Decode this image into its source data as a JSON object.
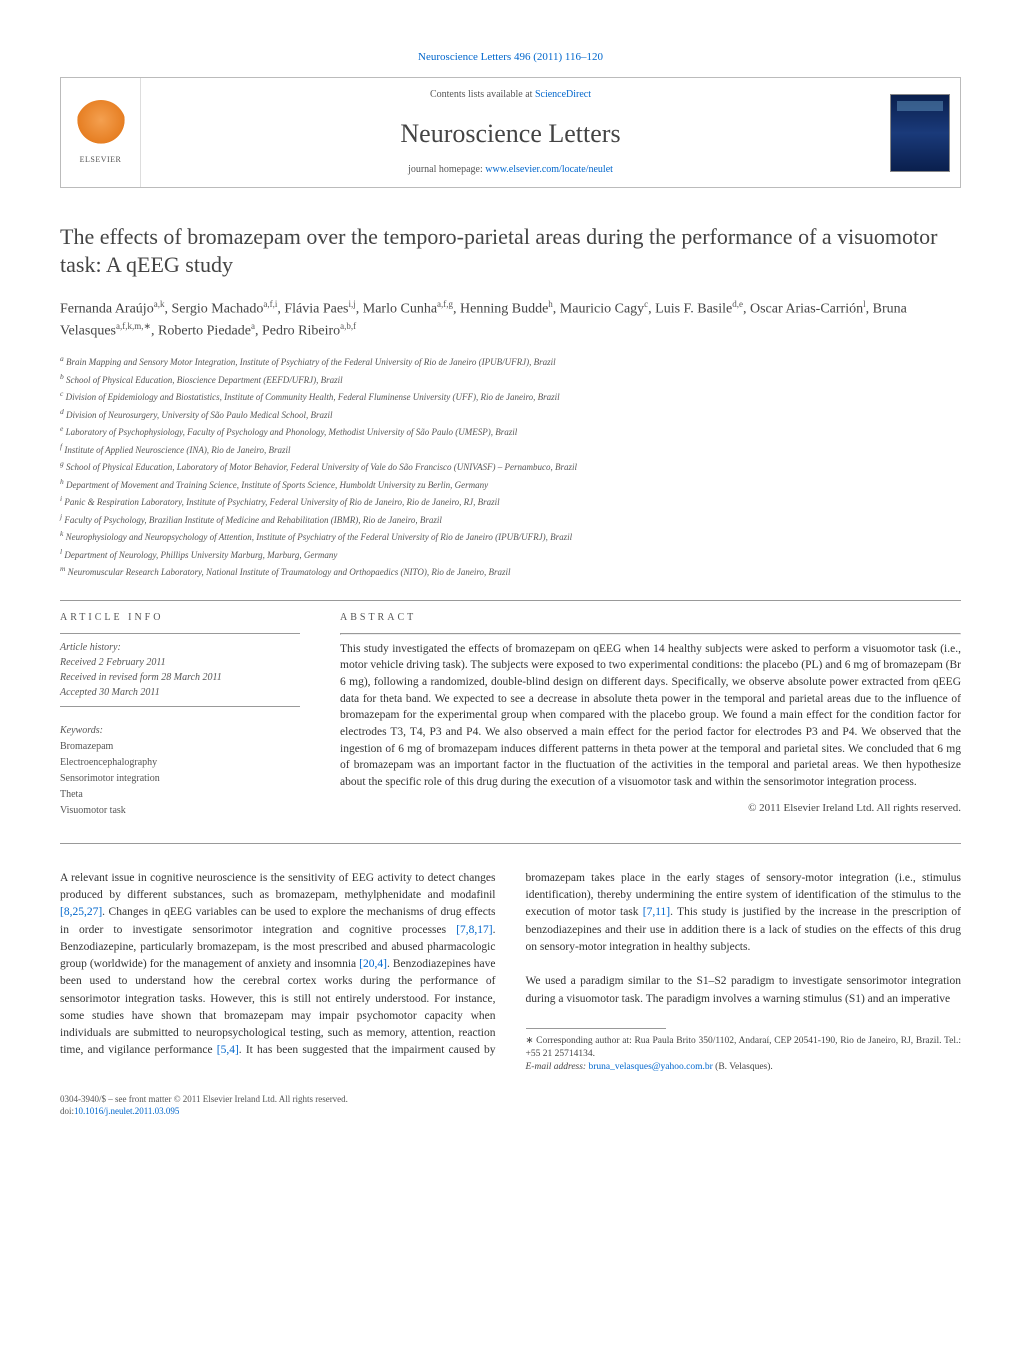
{
  "header": {
    "top_citation": "Neuroscience Letters 496 (2011) 116–120",
    "contents_prefix": "Contents lists available at ",
    "contents_link": "ScienceDirect",
    "journal_name": "Neuroscience Letters",
    "homepage_prefix": "journal homepage: ",
    "homepage_link": "www.elsevier.com/locate/neulet",
    "elsevier": "ELSEVIER"
  },
  "article": {
    "title": "The effects of bromazepam over the temporo-parietal areas during the performance of a visuomotor task: A qEEG study",
    "authors_html": "Fernanda Araújo<sup>a,k</sup>, Sergio Machado<sup>a,f,i</sup>, Flávia Paes<sup>i,j</sup>, Marlo Cunha<sup>a,f,g</sup>, Henning Budde<sup>h</sup>, Mauricio Cagy<sup>c</sup>, Luis F. Basile<sup>d,e</sup>, Oscar Arias-Carrión<sup>l</sup>, Bruna Velasques<sup>a,f,k,m,∗</sup>, Roberto Piedade<sup>a</sup>, Pedro Ribeiro<sup>a,b,f</sup>"
  },
  "affiliations": [
    "a Brain Mapping and Sensory Motor Integration, Institute of Psychiatry of the Federal University of Rio de Janeiro (IPUB/UFRJ), Brazil",
    "b School of Physical Education, Bioscience Department (EEFD/UFRJ), Brazil",
    "c Division of Epidemiology and Biostatistics, Institute of Community Health, Federal Fluminense University (UFF), Rio de Janeiro, Brazil",
    "d Division of Neurosurgery, University of São Paulo Medical School, Brazil",
    "e Laboratory of Psychophysiology, Faculty of Psychology and Phonology, Methodist University of São Paulo (UMESP), Brazil",
    "f Institute of Applied Neuroscience (INA), Rio de Janeiro, Brazil",
    "g School of Physical Education, Laboratory of Motor Behavior, Federal University of Vale do São Francisco (UNIVASF) – Pernambuco, Brazil",
    "h Department of Movement and Training Science, Institute of Sports Science, Humboldt University zu Berlin, Germany",
    "i Panic & Respiration Laboratory, Institute of Psychiatry, Federal University of Rio de Janeiro, Rio de Janeiro, RJ, Brazil",
    "j Faculty of Psychology, Brazilian Institute of Medicine and Rehabilitation (IBMR), Rio de Janeiro, Brazil",
    "k Neurophysiology and Neuropsychology of Attention, Institute of Psychiatry of the Federal University of Rio de Janeiro (IPUB/UFRJ), Brazil",
    "l Department of Neurology, Phillips University Marburg, Marburg, Germany",
    "m Neuromuscular Research Laboratory, National Institute of Traumatology and Orthopaedics (NITO), Rio de Janeiro, Brazil"
  ],
  "info": {
    "heading": "article info",
    "history_label": "Article history:",
    "received": "Received 2 February 2011",
    "revised": "Received in revised form 28 March 2011",
    "accepted": "Accepted 30 March 2011",
    "keywords_label": "Keywords:",
    "keywords": [
      "Bromazepam",
      "Electroencephalography",
      "Sensorimotor integration",
      "Theta",
      "Visuomotor task"
    ]
  },
  "abstract": {
    "heading": "abstract",
    "text": "This study investigated the effects of bromazepam on qEEG when 14 healthy subjects were asked to perform a visuomotor task (i.e., motor vehicle driving task). The subjects were exposed to two experimental conditions: the placebo (PL) and 6 mg of bromazepam (Br 6 mg), following a randomized, double-blind design on different days. Specifically, we observe absolute power extracted from qEEG data for theta band. We expected to see a decrease in absolute theta power in the temporal and parietal areas due to the influence of bromazepam for the experimental group when compared with the placebo group. We found a main effect for the condition factor for electrodes T3, T4, P3 and P4. We also observed a main effect for the period factor for electrodes P3 and P4. We observed that the ingestion of 6 mg of bromazepam induces different patterns in theta power at the temporal and parietal sites. We concluded that 6 mg of bromazepam was an important factor in the fluctuation of the activities in the temporal and parietal areas. We then hypothesize about the specific role of this drug during the execution of a visuomotor task and within the sensorimotor integration process.",
    "copyright": "© 2011 Elsevier Ireland Ltd. All rights reserved."
  },
  "body": {
    "para1_pre": "A relevant issue in cognitive neuroscience is the sensitivity of EEG activity to detect changes produced by different substances, such as bromazepam, methylphenidate and modafinil ",
    "ref1": "[8,25,27]",
    "para1_mid1": ". Changes in qEEG variables can be used to explore the mechanisms of drug effects in order to investigate sensorimotor integration and cognitive processes ",
    "ref2": "[7,8,17]",
    "para1_mid2": ". Benzodiazepine, particularly bromazepam, is the most prescribed and abused pharmacologic group (worldwide) for the management of anxiety and insomnia ",
    "ref3": "[20,4]",
    "para1_end": ". Benzodiazepines have been used to understand how the cerebral cortex works during the performance of sensorimotor integration ",
    "para2_pre": "tasks. However, this is still not entirely understood. For instance, some studies have shown that bromazepam may impair psychomotor capacity when individuals are submitted to neuropsychological testing, such as memory, attention, reaction time, and vigilance performance ",
    "ref4": "[5,4]",
    "para2_mid": ". It has been suggested that the impairment caused by bromazepam takes place in the early stages of sensory-motor integration (i.e., stimulus identification), thereby undermining the entire system of identification of the stimulus to the execution of motor task ",
    "ref5": "[7,11]",
    "para2_end": ". This study is justified by the increase in the prescription of benzodiazepines and their use in addition there is a lack of studies on the effects of this drug on sensory-motor integration in healthy subjects.",
    "para3": "We used a paradigm similar to the S1–S2 paradigm to investigate sensorimotor integration during a visuomotor task. The paradigm involves a warning stimulus (S1) and an imperative"
  },
  "footnotes": {
    "corr_label": "∗ Corresponding author at: Rua Paula Brito 350/1102, Andaraí, CEP 20541-190, Rio de Janeiro, RJ, Brazil. Tel.: +55 21 25714134.",
    "email_label": "E-mail address: ",
    "email": "bruna_velasques@yahoo.com.br",
    "email_suffix": " (B. Velasques)."
  },
  "footer": {
    "line1": "0304-3940/$ – see front matter © 2011 Elsevier Ireland Ltd. All rights reserved.",
    "doi_prefix": "doi:",
    "doi": "10.1016/j.neulet.2011.03.095"
  },
  "colors": {
    "link": "#0066cc",
    "text": "#333333",
    "muted": "#555555",
    "rule": "#999999"
  }
}
